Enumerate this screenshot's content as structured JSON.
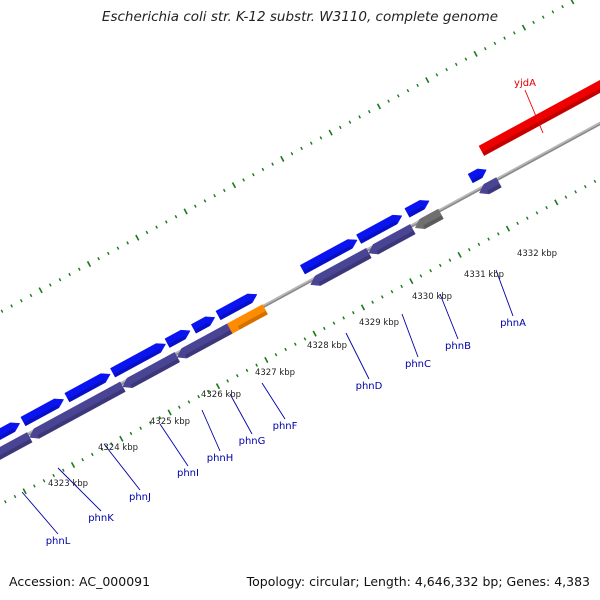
{
  "title": "Escherichia coli str. K-12 substr. W3110, complete genome",
  "accession": "Accession: AC_000091",
  "topology": "Topology: circular; Length: 4,646,332 bp; Genes: 4,383",
  "colors": {
    "forward_cds": "#0a14f0",
    "reverse_cds": "#4a4494",
    "highlight_cds": "#ff8c00",
    "highlight_gene": "#ee0000",
    "other_feature": "#707070",
    "backbone": "#8a8a8a",
    "tick": "#1a7a1a",
    "gene_label": "#0000a8"
  },
  "kbp_labels": [
    {
      "text": "4323 kbp",
      "pos": 4323
    },
    {
      "text": "4324 kbp",
      "pos": 4324
    },
    {
      "text": "4325 kbp",
      "pos": 4325
    },
    {
      "text": "4326 kbp",
      "pos": 4326
    },
    {
      "text": "4327 kbp",
      "pos": 4327
    },
    {
      "text": "4328 kbp",
      "pos": 4328
    },
    {
      "text": "4329 kbp",
      "pos": 4329
    },
    {
      "text": "4330 kbp",
      "pos": 4330
    },
    {
      "text": "4331 kbp",
      "pos": 4331
    },
    {
      "text": "4332 kbp",
      "pos": 4332
    }
  ],
  "gene_labels": [
    {
      "name": "phnL",
      "color": "blue"
    },
    {
      "name": "phnK",
      "color": "blue"
    },
    {
      "name": "phnJ",
      "color": "blue"
    },
    {
      "name": "phnI",
      "color": "blue"
    },
    {
      "name": "phnH",
      "color": "blue"
    },
    {
      "name": "phnG",
      "color": "blue"
    },
    {
      "name": "phnF",
      "color": "blue"
    },
    {
      "name": "phnD",
      "color": "blue"
    },
    {
      "name": "phnC",
      "color": "blue"
    },
    {
      "name": "phnB",
      "color": "blue"
    },
    {
      "name": "phnA",
      "color": "blue"
    },
    {
      "name": "yjdA",
      "color": "red"
    }
  ]
}
